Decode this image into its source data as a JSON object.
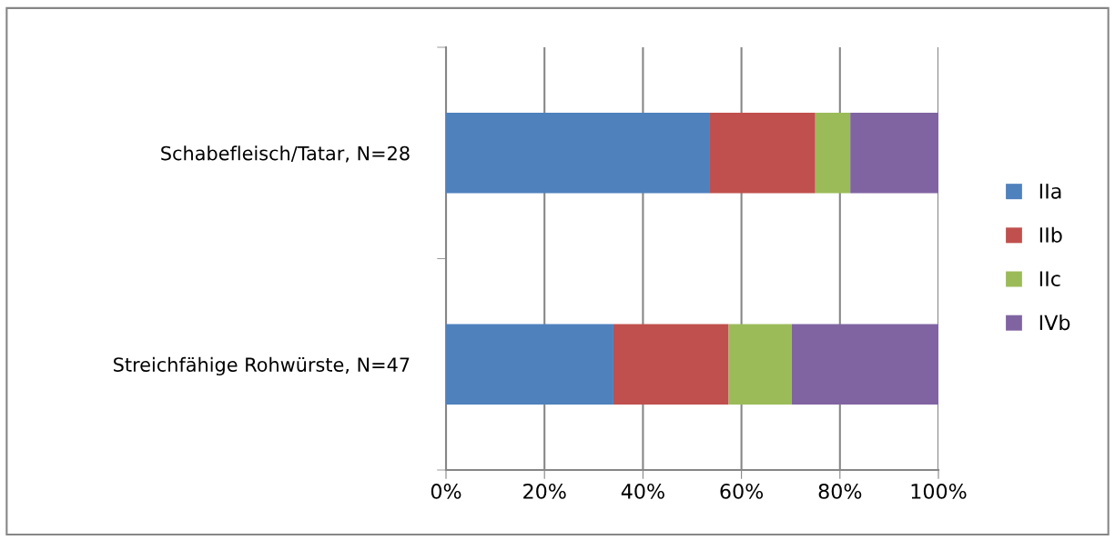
{
  "chart_data": {
    "type": "bar",
    "orientation": "horizontal",
    "stacked": true,
    "categories": [
      "Schabefleisch/Tatar, N=28",
      "Streichfähige Rohwürste, N=47"
    ],
    "series": [
      {
        "name": "IIa",
        "color": "#4f81bd",
        "values": [
          53.6,
          34.0
        ]
      },
      {
        "name": "IIb",
        "color": "#c0504d",
        "values": [
          21.4,
          23.4
        ]
      },
      {
        "name": "IIc",
        "color": "#9bbb59",
        "values": [
          7.1,
          12.8
        ]
      },
      {
        "name": "IVb",
        "color": "#8064a2",
        "values": [
          17.9,
          29.8
        ]
      }
    ],
    "xlim": [
      0,
      100
    ],
    "xticks": [
      {
        "value": 0,
        "label": "0%"
      },
      {
        "value": 20,
        "label": "20%"
      },
      {
        "value": 40,
        "label": "40%"
      },
      {
        "value": 60,
        "label": "60%"
      },
      {
        "value": 80,
        "label": "80%"
      },
      {
        "value": 100,
        "label": "100%"
      }
    ],
    "grid": "x",
    "legend": "right"
  }
}
